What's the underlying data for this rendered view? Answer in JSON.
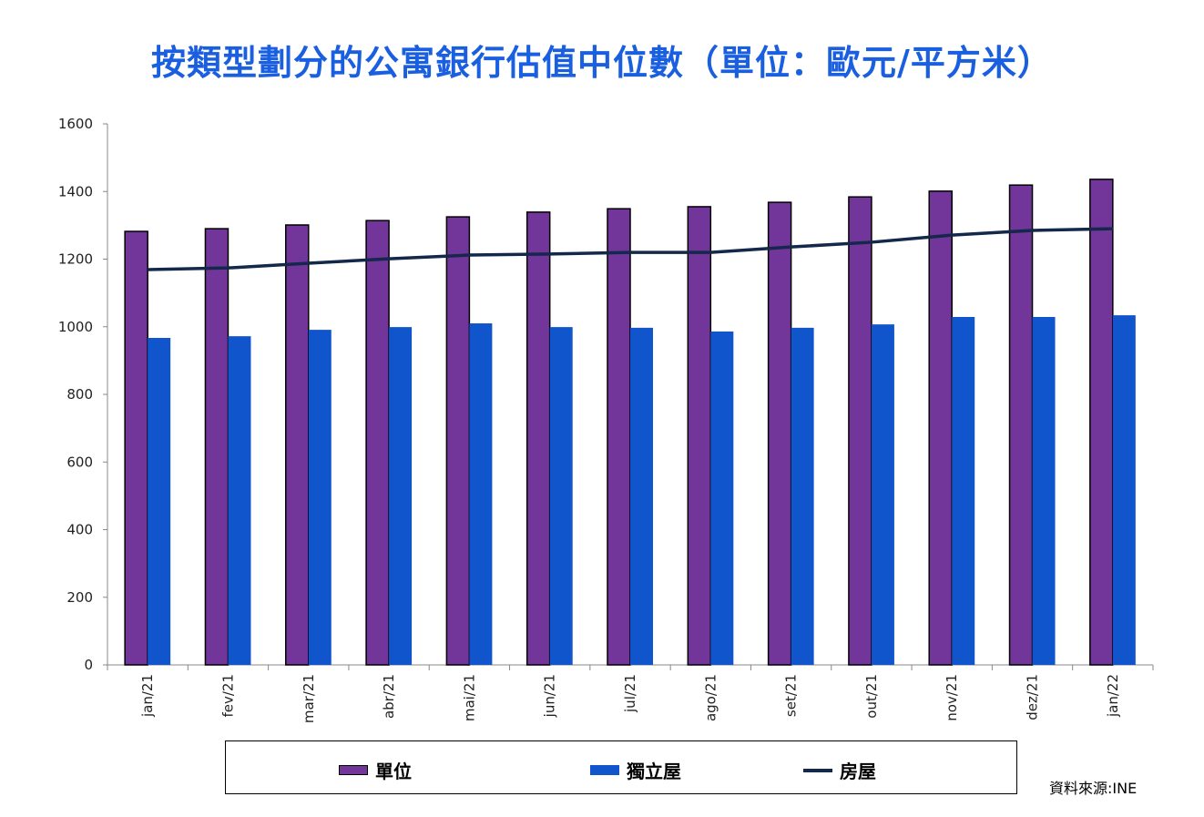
{
  "chart_data": {
    "type": "bar+line",
    "title": "按類型劃分的公寓銀行估值中位數（單位：歐元/平方米）",
    "categories": [
      "jan/21",
      "fev/21",
      "mar/21",
      "abr/21",
      "mai/21",
      "jun/21",
      "jul/21",
      "ago/21",
      "set/21",
      "out/21",
      "nov/21",
      "dez/21",
      "jan/22"
    ],
    "ylim": [
      0,
      1600
    ],
    "yticks": [
      0,
      200,
      400,
      600,
      800,
      1000,
      1200,
      1400,
      1600
    ],
    "grid": false,
    "legend_placement": "bottom",
    "series": [
      {
        "name": "單位",
        "type": "bar",
        "color": "#72359a",
        "values": [
          1282,
          1290,
          1301,
          1314,
          1325,
          1339,
          1349,
          1355,
          1368,
          1384,
          1401,
          1419,
          1436
        ]
      },
      {
        "name": "獨立屋",
        "type": "bar",
        "color": "#1155cc",
        "values": [
          967,
          972,
          991,
          999,
          1010,
          999,
          997,
          986,
          997,
          1007,
          1029,
          1029,
          1034
        ]
      },
      {
        "name": "房屋",
        "type": "line",
        "color": "#13284a",
        "values": [
          1169,
          1174,
          1188,
          1201,
          1212,
          1215,
          1220,
          1220,
          1236,
          1250,
          1271,
          1285,
          1290
        ]
      }
    ]
  },
  "source": "資料來源:INE"
}
